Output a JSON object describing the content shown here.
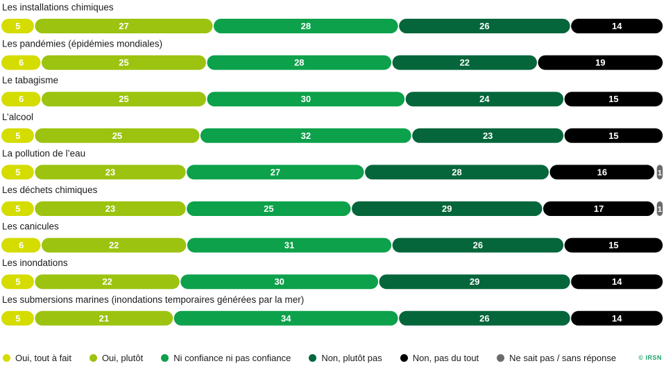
{
  "chart_data": {
    "type": "bar",
    "orientation": "horizontal-stacked-100",
    "categories": [
      "Les installations chimiques",
      "Les pandémies (épidémies mondiales)",
      "Le tabagisme",
      "L’alcool",
      "La pollution de l’eau",
      "Les déchets chimiques",
      "Les canicules",
      "Les inondations",
      "Les submersions marines (inondations temporaires générées par la mer)"
    ],
    "series": [
      {
        "name": "Oui, tout à fait",
        "color": "#d4dc00",
        "values": [
          5,
          6,
          6,
          5,
          5,
          5,
          6,
          5,
          5
        ]
      },
      {
        "name": "Oui, plutôt",
        "color": "#9cc30f",
        "values": [
          27,
          25,
          25,
          25,
          23,
          23,
          22,
          22,
          21
        ]
      },
      {
        "name": "Ni confiance ni pas confiance",
        "color": "#0ca14a",
        "values": [
          28,
          28,
          30,
          32,
          27,
          25,
          31,
          30,
          34
        ]
      },
      {
        "name": "Non, plutôt pas",
        "color": "#05663b",
        "values": [
          26,
          22,
          24,
          23,
          28,
          29,
          26,
          29,
          26
        ]
      },
      {
        "name": "Non, pas du tout",
        "color": "#000000",
        "values": [
          14,
          19,
          15,
          15,
          16,
          17,
          15,
          14,
          14
        ]
      },
      {
        "name": "Ne sait pas / sans réponse",
        "color": "#6b6b6b",
        "values": [
          0,
          0,
          0,
          0,
          1,
          1,
          0,
          0,
          0
        ]
      }
    ],
    "legend_position": "bottom",
    "grid": false
  },
  "credit": "© IRSN"
}
